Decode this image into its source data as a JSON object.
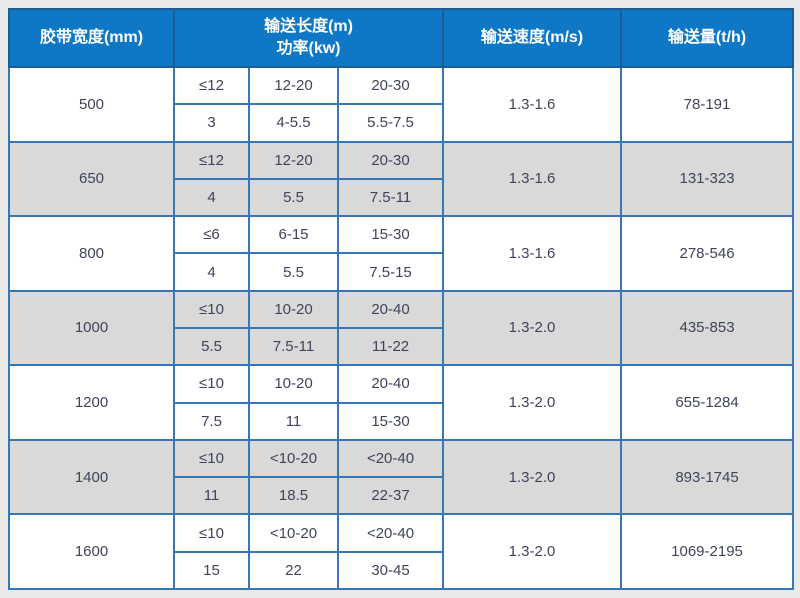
{
  "header": {
    "belt_width": "胶带宽度(mm)",
    "length_line": "输送长度(m)",
    "power_line": "功率(kw)",
    "speed": "输送速度(m/s)",
    "capacity": "输送量(t/h)"
  },
  "table": {
    "rows": [
      {
        "belt_width": "500",
        "length": [
          "≤12",
          "12-20",
          "20-30"
        ],
        "power": [
          "3",
          "4-5.5",
          "5.5-7.5"
        ],
        "speed": "1.3-1.6",
        "capacity": "78-191",
        "shaded": false
      },
      {
        "belt_width": "650",
        "length": [
          "≤12",
          "12-20",
          "20-30"
        ],
        "power": [
          "4",
          "5.5",
          "7.5-11"
        ],
        "speed": "1.3-1.6",
        "capacity": "131-323",
        "shaded": true
      },
      {
        "belt_width": "800",
        "length": [
          "≤6",
          "6-15",
          "15-30"
        ],
        "power": [
          "4",
          "5.5",
          "7.5-15"
        ],
        "speed": "1.3-1.6",
        "capacity": "278-546",
        "shaded": false
      },
      {
        "belt_width": "1000",
        "length": [
          "≤10",
          "10-20",
          "20-40"
        ],
        "power": [
          "5.5",
          "7.5-11",
          "11-22"
        ],
        "speed": "1.3-2.0",
        "capacity": "435-853",
        "shaded": true
      },
      {
        "belt_width": "1200",
        "length": [
          "≤10",
          "10-20",
          "20-40"
        ],
        "power": [
          "7.5",
          "11",
          "15-30"
        ],
        "speed": "1.3-2.0",
        "capacity": "655-1284",
        "shaded": false
      },
      {
        "belt_width": "1400",
        "length": [
          "≤10",
          "<10-20",
          "<20-40"
        ],
        "power": [
          "11",
          "18.5",
          "22-37"
        ],
        "speed": "1.3-2.0",
        "capacity": "893-1745",
        "shaded": true
      },
      {
        "belt_width": "1600",
        "length": [
          "≤10",
          "<10-20",
          "<20-40"
        ],
        "power": [
          "15",
          "22",
          "30-45"
        ],
        "speed": "1.3-2.0",
        "capacity": "1069-2195",
        "shaded": false
      }
    ]
  },
  "chart_data": {
    "type": "table",
    "columns": [
      "胶带宽度(mm)",
      "输送长度(m)/功率(kw) 1",
      "输送长度(m)/功率(kw) 2",
      "输送长度(m)/功率(kw) 3",
      "输送速度(m/s)",
      "输送量(t/h)"
    ],
    "rows": [
      [
        "500",
        "≤12",
        "12-20",
        "20-30",
        "1.3-1.6",
        "78-191"
      ],
      [
        "500",
        "3",
        "4-5.5",
        "5.5-7.5",
        "1.3-1.6",
        "78-191"
      ],
      [
        "650",
        "≤12",
        "12-20",
        "20-30",
        "1.3-1.6",
        "131-323"
      ],
      [
        "650",
        "4",
        "5.5",
        "7.5-11",
        "1.3-1.6",
        "131-323"
      ],
      [
        "800",
        "≤6",
        "6-15",
        "15-30",
        "1.3-1.6",
        "278-546"
      ],
      [
        "800",
        "4",
        "5.5",
        "7.5-15",
        "1.3-1.6",
        "278-546"
      ],
      [
        "1000",
        "≤10",
        "10-20",
        "20-40",
        "1.3-2.0",
        "435-853"
      ],
      [
        "1000",
        "5.5",
        "7.5-11",
        "11-22",
        "1.3-2.0",
        "435-853"
      ],
      [
        "1200",
        "≤10",
        "10-20",
        "20-40",
        "1.3-2.0",
        "655-1284"
      ],
      [
        "1200",
        "7.5",
        "11",
        "15-30",
        "1.3-2.0",
        "655-1284"
      ],
      [
        "1400",
        "≤10",
        "<10-20",
        "<20-40",
        "1.3-2.0",
        "893-1745"
      ],
      [
        "1400",
        "11",
        "18.5",
        "22-37",
        "1.3-2.0",
        "893-1745"
      ],
      [
        "1600",
        "≤10",
        "<10-20",
        "<20-40",
        "1.3-2.0",
        "1069-2195"
      ],
      [
        "1600",
        "15",
        "22",
        "30-45",
        "1.3-2.0",
        "1069-2195"
      ]
    ]
  },
  "colors": {
    "page_bg": "#e9e9e9",
    "header_bg": "#0f78c6",
    "header_text": "#ffffff",
    "header_border": "#1d5c90",
    "cell_border": "#3778b4",
    "outer_border": "#2f6ea8",
    "shaded_row_bg": "#d9d9d9",
    "row_bg": "#ffffff",
    "cell_text": "#3f4458"
  }
}
